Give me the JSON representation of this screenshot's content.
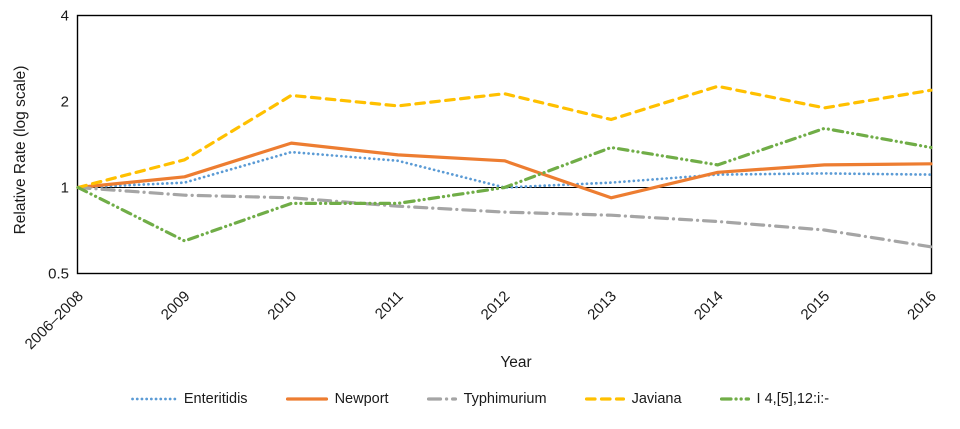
{
  "figure": {
    "y_axis_title": "Relative Rate (log scale)",
    "x_axis_title": "Year"
  },
  "chart_data": {
    "type": "line",
    "title": "",
    "xlabel": "Year",
    "ylabel": "Relative Rate (log scale)",
    "y_scale": "log2",
    "ylim": [
      0.5,
      4
    ],
    "y_ticks": [
      "4",
      "2",
      "1",
      "0.5"
    ],
    "reference_line_y": 1,
    "grid": false,
    "legend_position": "bottom",
    "categories": [
      "2006–2008",
      "2009",
      "2010",
      "2011",
      "2012",
      "2013",
      "2014",
      "2015",
      "2016"
    ],
    "series": [
      {
        "name": "Enteritidis",
        "color": "#5B9BD5",
        "line_style": "dotted",
        "values": [
          1.0,
          1.04,
          1.33,
          1.24,
          1.0,
          1.04,
          1.11,
          1.12,
          1.11
        ]
      },
      {
        "name": "Newport",
        "color": "#ED7D31",
        "line_style": "solid",
        "values": [
          1.0,
          1.09,
          1.43,
          1.3,
          1.24,
          0.92,
          1.13,
          1.2,
          1.21
        ]
      },
      {
        "name": "Typhimurium",
        "color": "#A5A5A5",
        "line_style": "dash-dot",
        "values": [
          1.0,
          0.94,
          0.92,
          0.86,
          0.82,
          0.8,
          0.76,
          0.71,
          0.62
        ]
      },
      {
        "name": "Javiana",
        "color": "#FFC000",
        "line_style": "dashed",
        "values": [
          1.0,
          1.25,
          2.1,
          1.93,
          2.13,
          1.73,
          2.26,
          1.9,
          2.19
        ]
      },
      {
        "name": "I 4,[5],12:i:-",
        "color": "#70AD47",
        "line_style": "dash-dot-dot",
        "values": [
          1.0,
          0.65,
          0.88,
          0.88,
          1.0,
          1.38,
          1.2,
          1.61,
          1.38
        ]
      }
    ],
    "axis_color": "#000000",
    "tick_label_color": "#1a1a1a"
  }
}
